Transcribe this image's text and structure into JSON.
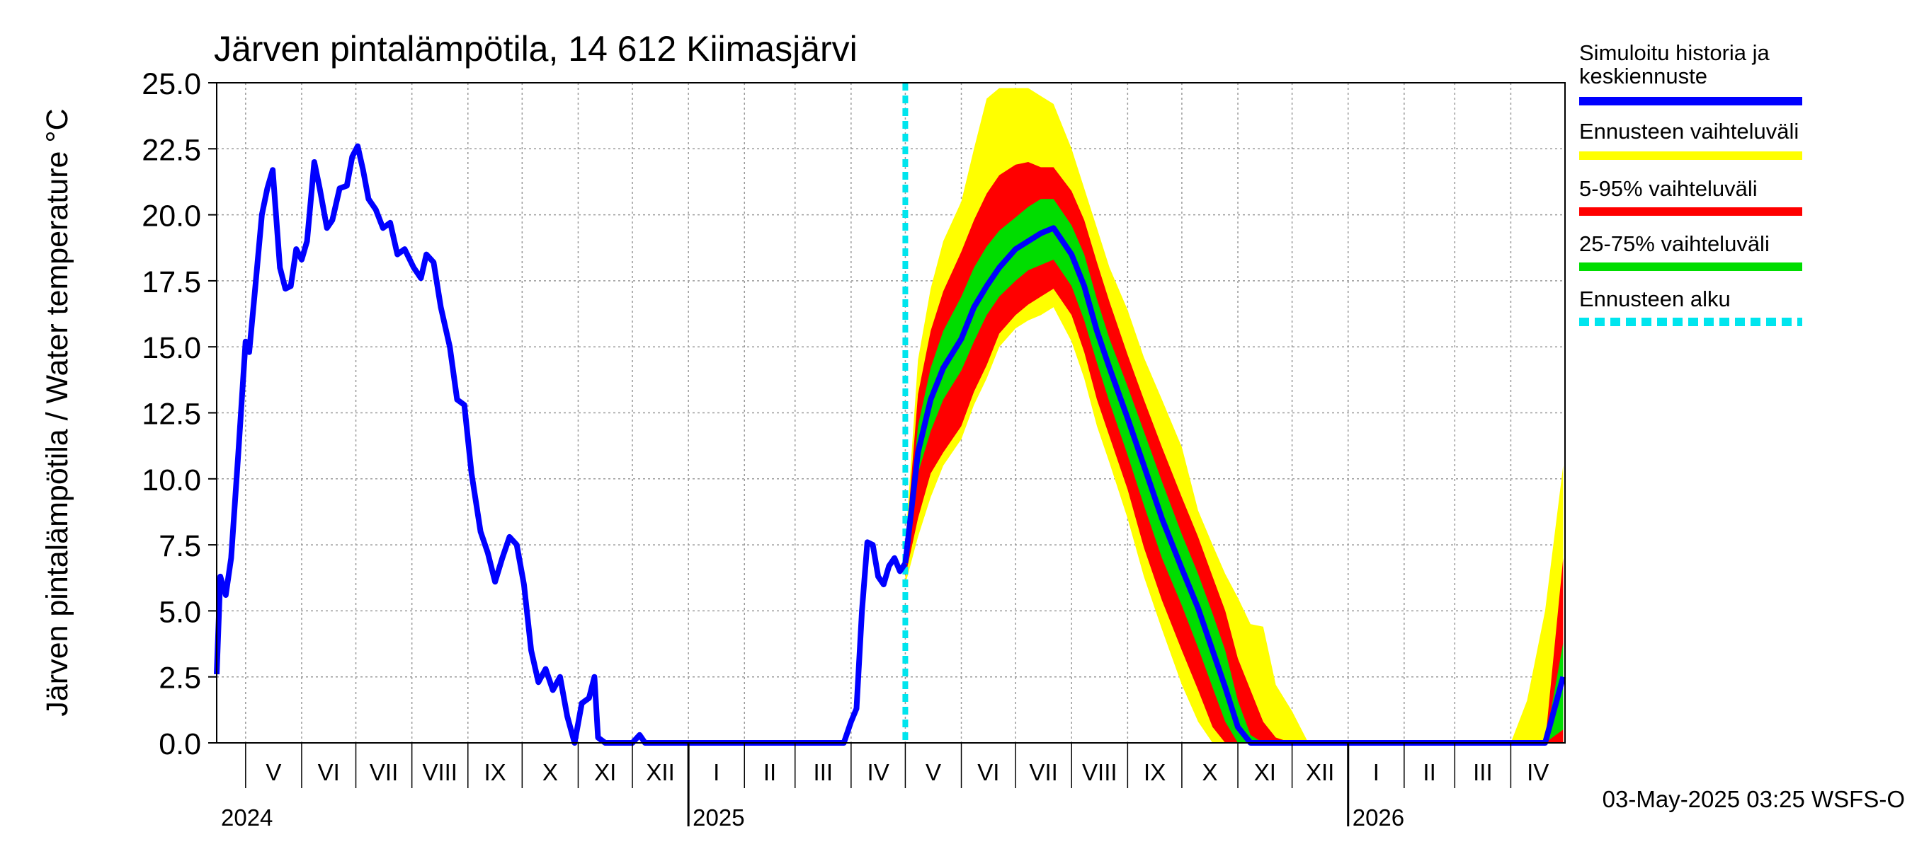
{
  "chart_data": {
    "type": "area",
    "title": "Järven pintalämpötila, 14 612 Kiimasjärvi",
    "ylabel": "Järven pintalämpötila / Water temperature °C",
    "xlabel": "",
    "ylim": [
      0,
      25
    ],
    "yticks": [
      "0.0",
      "2.5",
      "5.0",
      "7.5",
      "10.0",
      "12.5",
      "15.0",
      "17.5",
      "20.0",
      "22.5",
      "25.0"
    ],
    "x_range": [
      "2024-04-15",
      "2026-05-01"
    ],
    "months": [
      {
        "label": "V",
        "start": "2024-05-01"
      },
      {
        "label": "VI",
        "start": "2024-06-01"
      },
      {
        "label": "VII",
        "start": "2024-07-01"
      },
      {
        "label": "VIII",
        "start": "2024-08-01"
      },
      {
        "label": "IX",
        "start": "2024-09-01"
      },
      {
        "label": "X",
        "start": "2024-10-01"
      },
      {
        "label": "XI",
        "start": "2024-11-01"
      },
      {
        "label": "XII",
        "start": "2024-12-01"
      },
      {
        "label": "I",
        "start": "2025-01-01"
      },
      {
        "label": "II",
        "start": "2025-02-01"
      },
      {
        "label": "III",
        "start": "2025-03-01"
      },
      {
        "label": "IV",
        "start": "2025-04-01"
      },
      {
        "label": "V",
        "start": "2025-05-01"
      },
      {
        "label": "VI",
        "start": "2025-06-01"
      },
      {
        "label": "VII",
        "start": "2025-07-01"
      },
      {
        "label": "VIII",
        "start": "2025-08-01"
      },
      {
        "label": "IX",
        "start": "2025-09-01"
      },
      {
        "label": "X",
        "start": "2025-10-01"
      },
      {
        "label": "XI",
        "start": "2025-11-01"
      },
      {
        "label": "XII",
        "start": "2025-12-01"
      },
      {
        "label": "I",
        "start": "2026-01-01"
      },
      {
        "label": "II",
        "start": "2026-02-01"
      },
      {
        "label": "III",
        "start": "2026-03-01"
      },
      {
        "label": "IV",
        "start": "2026-04-01"
      }
    ],
    "years": [
      {
        "label": "2024",
        "start": "2024-04-15"
      },
      {
        "label": "2025",
        "start": "2025-01-01"
      },
      {
        "label": "2026",
        "start": "2026-01-01"
      }
    ],
    "forecast_start": "2025-05-01",
    "legend": {
      "placement": "right",
      "entries": [
        {
          "label": "Simuloitu historia ja keskiennuste",
          "color": "#0000ff"
        },
        {
          "label": "Ennusteen vaihteluväli",
          "color": "#ffff00"
        },
        {
          "label": "5-95% vaihteluväli",
          "color": "#ff0000"
        },
        {
          "label": "25-75% vaihteluväli",
          "color": "#00dd00"
        },
        {
          "label": "Ennusteen alku",
          "color": "#00e5ee"
        }
      ]
    },
    "history": {
      "name": "Simuloitu historia ja keskiennuste",
      "points": [
        [
          "2024-04-15",
          2.6
        ],
        [
          "2024-04-17",
          6.3
        ],
        [
          "2024-04-20",
          5.6
        ],
        [
          "2024-04-23",
          7.0
        ],
        [
          "2024-04-27",
          11.0
        ],
        [
          "2024-05-01",
          15.2
        ],
        [
          "2024-05-03",
          14.8
        ],
        [
          "2024-05-06",
          17.0
        ],
        [
          "2024-05-10",
          20.0
        ],
        [
          "2024-05-13",
          21.0
        ],
        [
          "2024-05-16",
          21.7
        ],
        [
          "2024-05-20",
          18.0
        ],
        [
          "2024-05-23",
          17.2
        ],
        [
          "2024-05-26",
          17.3
        ],
        [
          "2024-05-29",
          18.7
        ],
        [
          "2024-06-01",
          18.3
        ],
        [
          "2024-06-04",
          19.0
        ],
        [
          "2024-06-08",
          22.0
        ],
        [
          "2024-06-11",
          21.0
        ],
        [
          "2024-06-15",
          19.5
        ],
        [
          "2024-06-18",
          19.8
        ],
        [
          "2024-06-22",
          21.0
        ],
        [
          "2024-06-26",
          21.1
        ],
        [
          "2024-06-29",
          22.2
        ],
        [
          "2024-07-02",
          22.6
        ],
        [
          "2024-07-05",
          21.7
        ],
        [
          "2024-07-08",
          20.6
        ],
        [
          "2024-07-12",
          20.2
        ],
        [
          "2024-07-16",
          19.5
        ],
        [
          "2024-07-20",
          19.7
        ],
        [
          "2024-07-24",
          18.5
        ],
        [
          "2024-07-28",
          18.7
        ],
        [
          "2024-08-02",
          18.0
        ],
        [
          "2024-08-06",
          17.6
        ],
        [
          "2024-08-09",
          18.5
        ],
        [
          "2024-08-13",
          18.2
        ],
        [
          "2024-08-17",
          16.5
        ],
        [
          "2024-08-22",
          15.0
        ],
        [
          "2024-08-26",
          13.0
        ],
        [
          "2024-08-30",
          12.8
        ],
        [
          "2024-09-03",
          10.2
        ],
        [
          "2024-09-08",
          8.0
        ],
        [
          "2024-09-12",
          7.2
        ],
        [
          "2024-09-16",
          6.1
        ],
        [
          "2024-09-20",
          7.0
        ],
        [
          "2024-09-24",
          7.8
        ],
        [
          "2024-09-28",
          7.5
        ],
        [
          "2024-10-02",
          6.0
        ],
        [
          "2024-10-06",
          3.5
        ],
        [
          "2024-10-10",
          2.3
        ],
        [
          "2024-10-14",
          2.8
        ],
        [
          "2024-10-18",
          2.0
        ],
        [
          "2024-10-22",
          2.5
        ],
        [
          "2024-10-26",
          1.0
        ],
        [
          "2024-10-30",
          0.0
        ],
        [
          "2024-11-03",
          1.5
        ],
        [
          "2024-11-07",
          1.7
        ],
        [
          "2024-11-10",
          2.5
        ],
        [
          "2024-11-12",
          0.2
        ],
        [
          "2024-11-16",
          0.0
        ],
        [
          "2024-11-20",
          0.0
        ],
        [
          "2024-11-25",
          0.0
        ],
        [
          "2024-12-01",
          0.0
        ],
        [
          "2024-12-05",
          0.3
        ],
        [
          "2024-12-08",
          0.0
        ],
        [
          "2025-01-01",
          0.0
        ],
        [
          "2025-02-01",
          0.0
        ],
        [
          "2025-03-01",
          0.0
        ],
        [
          "2025-03-28",
          0.0
        ],
        [
          "2025-04-01",
          0.8
        ],
        [
          "2025-04-04",
          1.3
        ],
        [
          "2025-04-07",
          5.0
        ],
        [
          "2025-04-10",
          7.6
        ],
        [
          "2025-04-13",
          7.5
        ],
        [
          "2025-04-16",
          6.3
        ],
        [
          "2025-04-19",
          6.0
        ],
        [
          "2025-04-22",
          6.7
        ],
        [
          "2025-04-25",
          7.0
        ],
        [
          "2025-04-28",
          6.5
        ],
        [
          "2025-05-01",
          6.8
        ]
      ]
    },
    "forecast": {
      "dates": [
        "2025-05-01",
        "2025-05-08",
        "2025-05-15",
        "2025-05-22",
        "2025-06-01",
        "2025-06-08",
        "2025-06-15",
        "2025-06-22",
        "2025-07-01",
        "2025-07-08",
        "2025-07-15",
        "2025-07-22",
        "2025-08-01",
        "2025-08-08",
        "2025-08-15",
        "2025-08-22",
        "2025-09-01",
        "2025-09-10",
        "2025-09-20",
        "2025-10-01",
        "2025-10-10",
        "2025-10-18",
        "2025-10-25",
        "2025-11-01",
        "2025-11-08",
        "2025-11-15",
        "2025-11-22",
        "2025-12-01",
        "2025-12-10",
        "2025-12-20",
        "2026-01-01",
        "2026-04-01",
        "2026-04-10",
        "2026-04-20",
        "2026-04-30"
      ],
      "median": [
        6.8,
        11.0,
        13.0,
        14.2,
        15.3,
        16.5,
        17.3,
        18.0,
        18.7,
        19.0,
        19.3,
        19.5,
        18.5,
        17.3,
        15.6,
        14.2,
        12.3,
        10.5,
        8.5,
        6.6,
        5.1,
        3.5,
        2.1,
        0.6,
        0.0,
        0.0,
        0.0,
        0.0,
        0.0,
        0.0,
        0.0,
        0.0,
        0.0,
        0.0,
        2.5
      ],
      "p25": [
        6.6,
        10.2,
        11.8,
        13.0,
        14.1,
        15.2,
        16.2,
        16.9,
        17.5,
        17.9,
        18.1,
        18.3,
        17.3,
        16.0,
        14.4,
        12.9,
        10.9,
        9.0,
        7.0,
        5.2,
        3.6,
        2.1,
        0.8,
        0.0,
        0.0,
        0.0,
        0.0,
        0.0,
        0.0,
        0.0,
        0.0,
        0.0,
        0.0,
        0.0,
        0.5
      ],
      "p75": [
        7.0,
        12.0,
        14.2,
        15.6,
        16.9,
        18.0,
        18.8,
        19.4,
        19.9,
        20.3,
        20.6,
        20.6,
        19.6,
        18.5,
        16.8,
        15.3,
        13.5,
        11.8,
        9.9,
        7.9,
        6.4,
        4.9,
        3.5,
        1.6,
        0.3,
        0.0,
        0.0,
        0.0,
        0.0,
        0.0,
        0.0,
        0.0,
        0.0,
        0.0,
        3.8
      ],
      "p5": [
        6.3,
        8.5,
        10.2,
        11.0,
        12.0,
        13.3,
        14.3,
        15.5,
        16.2,
        16.6,
        16.9,
        17.2,
        16.2,
        14.8,
        13.0,
        11.6,
        9.6,
        7.4,
        5.4,
        3.5,
        2.0,
        0.6,
        0.0,
        0.0,
        0.0,
        0.0,
        0.0,
        0.0,
        0.0,
        0.0,
        0.0,
        0.0,
        0.0,
        0.0,
        0.0
      ],
      "p95": [
        7.2,
        13.2,
        15.6,
        17.1,
        18.6,
        19.8,
        20.8,
        21.5,
        21.9,
        22.0,
        21.8,
        21.8,
        20.9,
        19.8,
        18.2,
        16.7,
        14.7,
        13.0,
        11.2,
        9.3,
        7.8,
        6.3,
        5.0,
        3.2,
        2.0,
        0.8,
        0.2,
        0.0,
        0.0,
        0.0,
        0.0,
        0.0,
        0.0,
        0.0,
        7.0
      ],
      "min": [
        6.0,
        7.8,
        9.3,
        10.5,
        11.5,
        12.8,
        13.8,
        15.0,
        15.7,
        16.0,
        16.2,
        16.5,
        15.2,
        13.8,
        12.0,
        10.6,
        8.5,
        6.3,
        4.3,
        2.2,
        0.8,
        0.0,
        0.0,
        0.0,
        0.0,
        0.0,
        0.0,
        0.0,
        0.0,
        0.0,
        0.0,
        0.0,
        0.0,
        0.0,
        0.0
      ],
      "max": [
        7.5,
        14.5,
        17.2,
        19.0,
        20.5,
        22.5,
        24.4,
        24.8,
        24.8,
        24.8,
        24.5,
        24.2,
        22.5,
        21.0,
        19.5,
        18.0,
        16.4,
        14.6,
        13.0,
        11.2,
        8.8,
        7.5,
        6.4,
        5.5,
        4.5,
        4.4,
        2.2,
        1.2,
        0.0,
        0.0,
        0.0,
        0.0,
        1.6,
        5.0,
        10.5
      ]
    },
    "footer": "03-May-2025 03:25 WSFS-O"
  }
}
